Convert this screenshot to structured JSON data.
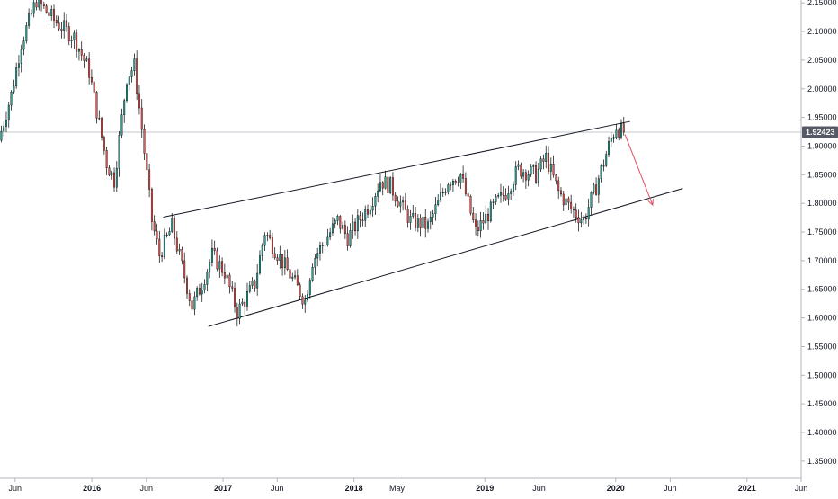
{
  "chart_data": {
    "type": "candlestick",
    "instrument_note": "",
    "colors": {
      "up": "#26a69a",
      "down": "#ef5350",
      "wick": "#000000",
      "trendline": "#131722",
      "projection_arrow": "#e04f5f",
      "price_line": "#b2b5be",
      "axis_line": "#b2b5be",
      "price_badge_bg": "#555a66",
      "background": "#ffffff"
    },
    "y_axis": {
      "min": 1.32,
      "max": 2.155,
      "ticks": [
        "1.35000",
        "1.40000",
        "1.45000",
        "1.50000",
        "1.55000",
        "1.60000",
        "1.65000",
        "1.70000",
        "1.75000",
        "1.80000",
        "1.85000",
        "1.90000",
        "1.95000",
        "2.00000",
        "2.05000",
        "2.10000",
        "2.15000"
      ]
    },
    "x_axis": {
      "start": "2015-04-20",
      "end": "2021-06-01",
      "ticks": [
        {
          "label": "Jun",
          "date": "2015-06-01",
          "bold": false
        },
        {
          "label": "2016",
          "date": "2016-01-01",
          "bold": true
        },
        {
          "label": "Jun",
          "date": "2016-06-01",
          "bold": false
        },
        {
          "label": "2017",
          "date": "2017-01-01",
          "bold": true
        },
        {
          "label": "Jun",
          "date": "2017-06-01",
          "bold": false
        },
        {
          "label": "2018",
          "date": "2018-01-01",
          "bold": true
        },
        {
          "label": "May",
          "date": "2018-05-01",
          "bold": false
        },
        {
          "label": "2019",
          "date": "2019-01-01",
          "bold": true
        },
        {
          "label": "Jun",
          "date": "2019-06-01",
          "bold": false
        },
        {
          "label": "2020",
          "date": "2020-01-01",
          "bold": true
        },
        {
          "label": "Jun",
          "date": "2020-06-01",
          "bold": false
        },
        {
          "label": "2021",
          "date": "2021-01-01",
          "bold": true
        },
        {
          "label": "Jun",
          "date": "2021-06-01",
          "bold": false
        }
      ]
    },
    "current_price": {
      "value": 1.92423,
      "label": "1.92423"
    },
    "price_path": [
      [
        "2015-04-20",
        1.91
      ],
      [
        "2015-05-25",
        1.99
      ],
      [
        "2015-06-22",
        2.08
      ],
      [
        "2015-08-03",
        2.155
      ],
      [
        "2015-09-21",
        2.12
      ],
      [
        "2015-11-16",
        2.09
      ],
      [
        "2015-12-28",
        2.03
      ],
      [
        "2016-02-15",
        1.87
      ],
      [
        "2016-03-07",
        1.84
      ],
      [
        "2016-04-11",
        2.02
      ],
      [
        "2016-05-02",
        2.04
      ],
      [
        "2016-05-23",
        1.93
      ],
      [
        "2016-06-20",
        1.77
      ],
      [
        "2016-07-11",
        1.71
      ],
      [
        "2016-08-15",
        1.76
      ],
      [
        "2016-10-10",
        1.62
      ],
      [
        "2016-11-07",
        1.66
      ],
      [
        "2016-12-05",
        1.71
      ],
      [
        "2017-01-09",
        1.68
      ],
      [
        "2017-02-13",
        1.61
      ],
      [
        "2017-04-03",
        1.66
      ],
      [
        "2017-05-01",
        1.75
      ],
      [
        "2017-06-26",
        1.69
      ],
      [
        "2017-08-21",
        1.63
      ],
      [
        "2017-09-11",
        1.7
      ],
      [
        "2017-11-20",
        1.77
      ],
      [
        "2017-12-18",
        1.74
      ],
      [
        "2018-02-19",
        1.8
      ],
      [
        "2018-03-19",
        1.84
      ],
      [
        "2018-04-16",
        1.83
      ],
      [
        "2018-06-11",
        1.77
      ],
      [
        "2018-07-30",
        1.76
      ],
      [
        "2018-09-24",
        1.84
      ],
      [
        "2018-10-29",
        1.85
      ],
      [
        "2018-12-10",
        1.75
      ],
      [
        "2019-02-04",
        1.8
      ],
      [
        "2019-03-04",
        1.82
      ],
      [
        "2019-04-08",
        1.86
      ],
      [
        "2019-05-27",
        1.85
      ],
      [
        "2019-06-24",
        1.88
      ],
      [
        "2019-07-29",
        1.82
      ],
      [
        "2019-09-02",
        1.79
      ],
      [
        "2019-10-07",
        1.77
      ],
      [
        "2019-11-11",
        1.83
      ],
      [
        "2019-12-16",
        1.9
      ],
      [
        "2020-01-06",
        1.935
      ],
      [
        "2020-01-20",
        1.925
      ]
    ],
    "annotations": {
      "upper_trendline": [
        [
          "2016-07-18",
          1.776
        ],
        [
          "2020-02-10",
          1.943
        ]
      ],
      "lower_trendline": [
        [
          "2016-11-21",
          1.585
        ],
        [
          "2020-07-06",
          1.826
        ]
      ],
      "projection_arrow": [
        [
          "2020-01-27",
          1.92
        ],
        [
          "2020-04-13",
          1.797
        ]
      ]
    }
  }
}
